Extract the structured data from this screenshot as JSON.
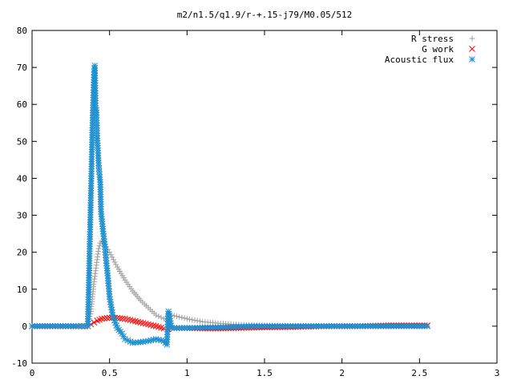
{
  "chart_data": {
    "type": "scatter",
    "title": "m2/n1.5/q1.9/r-+.15-j79/M0.05/512",
    "xlabel": "",
    "ylabel": "",
    "xlim": [
      0,
      3
    ],
    "ylim": [
      -10,
      80
    ],
    "x_ticks": [
      0,
      0.5,
      1,
      1.5,
      2,
      2.5,
      3
    ],
    "x_tick_labels": [
      "0",
      "0.5",
      "1",
      "1.5",
      "2",
      "2.5",
      "3"
    ],
    "y_ticks": [
      -10,
      0,
      10,
      20,
      30,
      40,
      50,
      60,
      70,
      80
    ],
    "y_tick_labels": [
      "-10",
      "0",
      "10",
      "20",
      "30",
      "40",
      "50",
      "60",
      "70",
      "80"
    ],
    "grid": false,
    "legend_position": "top-right",
    "series": [
      {
        "name": "R stress",
        "marker": "plus",
        "color": "#a0a0a0",
        "points": [
          [
            0,
            0
          ],
          [
            0.1,
            0
          ],
          [
            0.2,
            0
          ],
          [
            0.3,
            0
          ],
          [
            0.36,
            0
          ],
          [
            0.38,
            4
          ],
          [
            0.39,
            8
          ],
          [
            0.4,
            12
          ],
          [
            0.41,
            15
          ],
          [
            0.42,
            18
          ],
          [
            0.43,
            21
          ],
          [
            0.44,
            22.5
          ],
          [
            0.45,
            23
          ],
          [
            0.46,
            22.8
          ],
          [
            0.48,
            21.5
          ],
          [
            0.5,
            20
          ],
          [
            0.55,
            16
          ],
          [
            0.6,
            12.5
          ],
          [
            0.65,
            9.5
          ],
          [
            0.7,
            7
          ],
          [
            0.75,
            5
          ],
          [
            0.8,
            3
          ],
          [
            0.85,
            2
          ],
          [
            0.87,
            1.5
          ],
          [
            0.88,
            3.5
          ],
          [
            0.9,
            3
          ],
          [
            0.95,
            2.5
          ],
          [
            1.0,
            2
          ],
          [
            1.1,
            1.2
          ],
          [
            1.2,
            0.8
          ],
          [
            1.3,
            0.5
          ],
          [
            1.4,
            0.3
          ],
          [
            1.5,
            0.2
          ],
          [
            1.7,
            0.1
          ],
          [
            1.9,
            0
          ],
          [
            2.1,
            0
          ],
          [
            2.3,
            0
          ],
          [
            2.5,
            0
          ],
          [
            2.55,
            0
          ]
        ]
      },
      {
        "name": "G work",
        "marker": "cross",
        "color": "#ff0000",
        "points": [
          [
            0,
            0
          ],
          [
            0.1,
            0
          ],
          [
            0.2,
            0
          ],
          [
            0.3,
            0
          ],
          [
            0.36,
            0
          ],
          [
            0.38,
            0.5
          ],
          [
            0.4,
            1
          ],
          [
            0.42,
            1.5
          ],
          [
            0.45,
            2
          ],
          [
            0.5,
            2.3
          ],
          [
            0.55,
            2.2
          ],
          [
            0.6,
            2
          ],
          [
            0.65,
            1.5
          ],
          [
            0.7,
            1
          ],
          [
            0.75,
            0.5
          ],
          [
            0.8,
            0
          ],
          [
            0.85,
            -0.6
          ],
          [
            0.88,
            -0.8
          ],
          [
            0.9,
            -0.5
          ],
          [
            1.0,
            -0.5
          ],
          [
            1.1,
            -0.6
          ],
          [
            1.2,
            -0.6
          ],
          [
            1.3,
            -0.5
          ],
          [
            1.4,
            -0.4
          ],
          [
            1.5,
            -0.3
          ],
          [
            1.7,
            -0.2
          ],
          [
            1.9,
            0
          ],
          [
            2.1,
            0
          ],
          [
            2.3,
            0.2
          ],
          [
            2.5,
            0.2
          ],
          [
            2.55,
            0.2
          ]
        ]
      },
      {
        "name": "Acoustic flux",
        "marker": "star",
        "color": "#1e90d0",
        "points": [
          [
            0,
            0
          ],
          [
            0.1,
            0
          ],
          [
            0.2,
            0
          ],
          [
            0.3,
            0
          ],
          [
            0.36,
            0
          ],
          [
            0.38,
            36
          ],
          [
            0.39,
            55
          ],
          [
            0.4,
            68
          ],
          [
            0.405,
            70.5
          ],
          [
            0.41,
            59
          ],
          [
            0.415,
            58.5
          ],
          [
            0.42,
            51.5
          ],
          [
            0.43,
            43.5
          ],
          [
            0.435,
            41
          ],
          [
            0.44,
            39
          ],
          [
            0.445,
            31
          ],
          [
            0.45,
            29
          ],
          [
            0.46,
            25
          ],
          [
            0.47,
            21.5
          ],
          [
            0.48,
            17
          ],
          [
            0.49,
            13
          ],
          [
            0.5,
            8
          ],
          [
            0.52,
            3
          ],
          [
            0.55,
            -0.5
          ],
          [
            0.58,
            -2
          ],
          [
            0.6,
            -3.5
          ],
          [
            0.65,
            -4.5
          ],
          [
            0.7,
            -4.3
          ],
          [
            0.75,
            -4
          ],
          [
            0.8,
            -3.5
          ],
          [
            0.85,
            -4
          ],
          [
            0.87,
            -5
          ],
          [
            0.88,
            4
          ],
          [
            0.9,
            -0.5
          ],
          [
            1.0,
            -0.5
          ],
          [
            1.2,
            -0.3
          ],
          [
            1.4,
            0
          ],
          [
            1.6,
            0
          ],
          [
            1.8,
            0
          ],
          [
            2.0,
            0
          ],
          [
            2.2,
            0
          ],
          [
            2.4,
            0
          ],
          [
            2.55,
            0
          ]
        ]
      }
    ]
  }
}
